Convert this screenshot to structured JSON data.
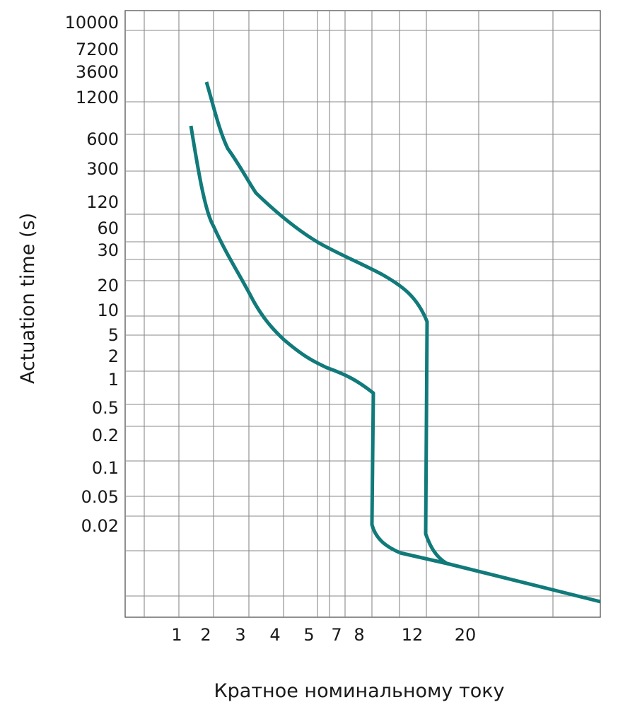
{
  "chart_data": {
    "type": "line",
    "title": "",
    "xlabel": "Кратное номинальному току",
    "ylabel": "Actuation time (s)",
    "x_tick_labels": [
      "1",
      "2",
      "3",
      "4",
      "5",
      "7",
      "8",
      "12",
      "20"
    ],
    "y_tick_labels": [
      "10000",
      "7200",
      "3600",
      "1200",
      "600",
      "300",
      "120",
      "60",
      "30",
      "20",
      "10",
      "5",
      "2",
      "1",
      "0.5",
      "0.2",
      "0.1",
      "0.05",
      "0.02"
    ],
    "grid": true,
    "line_color": "#117a7a",
    "series": [
      {
        "points": [
          [
            "1.5",
            "900"
          ],
          [
            "1.9",
            "80"
          ],
          [
            "2.5",
            "15"
          ],
          [
            "3.2",
            "4"
          ],
          [
            "4.5",
            "1.8"
          ],
          [
            "6",
            "1.1"
          ],
          [
            "8",
            "0.6"
          ],
          [
            "8",
            "0.02"
          ],
          [
            "12",
            "0.008"
          ],
          [
            "20",
            "0.005"
          ],
          [
            "40+",
            "0.002"
          ]
        ]
      },
      {
        "points": [
          [
            "2",
            "2000"
          ],
          [
            "2.4",
            "500"
          ],
          [
            "3",
            "150"
          ],
          [
            "4.5",
            "60"
          ],
          [
            "7",
            "30"
          ],
          [
            "10",
            "15"
          ],
          [
            "12",
            "8"
          ],
          [
            "12",
            "0.02"
          ],
          [
            "14",
            "0.005"
          ],
          [
            "40+",
            "0.002"
          ]
        ]
      }
    ]
  }
}
